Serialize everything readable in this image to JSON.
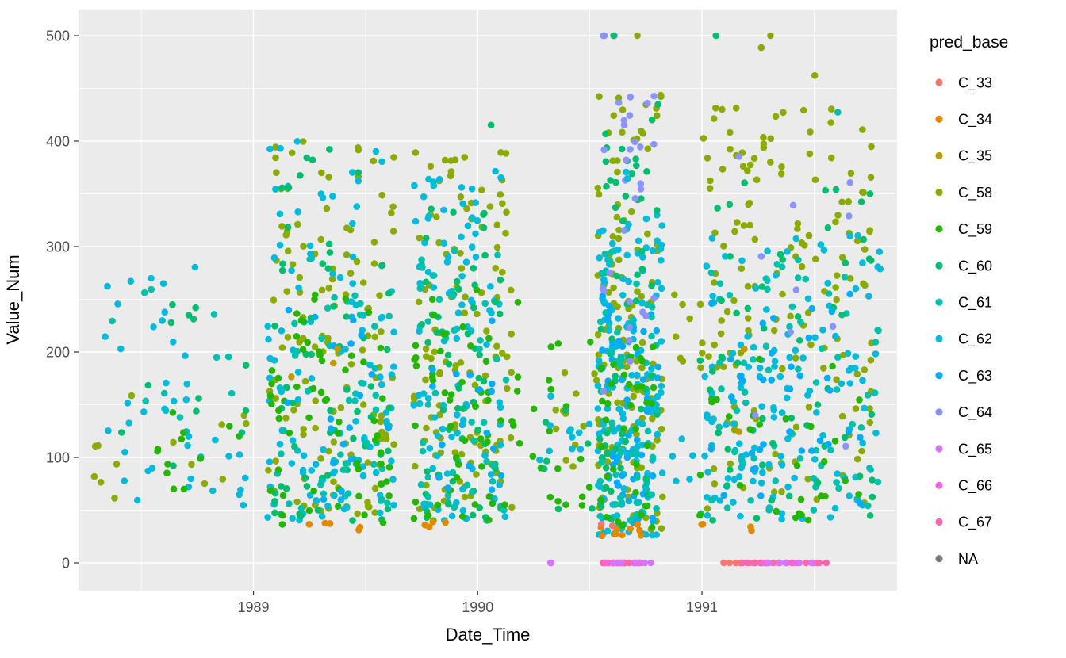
{
  "figure": {
    "background": "#FFFFFF"
  },
  "panel": {
    "background": "#EBEBEB",
    "grid_major": "#FFFFFF",
    "grid_minor": "#FFFFFF"
  },
  "axes": {
    "x": {
      "title": "Date_Time",
      "ticks": [
        {
          "value": 1989,
          "label": "1989"
        },
        {
          "value": 1990,
          "label": "1990"
        },
        {
          "value": 1991,
          "label": "1991"
        }
      ],
      "minor": [
        1988.5,
        1989.5,
        1990.5,
        1991.5
      ]
    },
    "y": {
      "title": "Value_Num",
      "ticks": [
        {
          "value": 0,
          "label": "0"
        },
        {
          "value": 100,
          "label": "100"
        },
        {
          "value": 200,
          "label": "200"
        },
        {
          "value": 300,
          "label": "300"
        },
        {
          "value": 400,
          "label": "400"
        },
        {
          "value": 500,
          "label": "500"
        }
      ],
      "minor": [
        50,
        150,
        250,
        350,
        450
      ]
    }
  },
  "legend": {
    "title": "pred_base",
    "position": "right",
    "items": [
      {
        "label": "C_33",
        "color": "#F8766D"
      },
      {
        "label": "C_34",
        "color": "#E18A00"
      },
      {
        "label": "C_35",
        "color": "#BE9C00"
      },
      {
        "label": "C_58",
        "color": "#8CAB00"
      },
      {
        "label": "C_59",
        "color": "#24B700"
      },
      {
        "label": "C_60",
        "color": "#00BE70"
      },
      {
        "label": "C_61",
        "color": "#00C1AB"
      },
      {
        "label": "C_62",
        "color": "#00BBDA"
      },
      {
        "label": "C_63",
        "color": "#00ACFC"
      },
      {
        "label": "C_64",
        "color": "#8B93FF"
      },
      {
        "label": "C_65",
        "color": "#D575FE"
      },
      {
        "label": "C_66",
        "color": "#F962DD"
      },
      {
        "label": "C_67",
        "color": "#FF65AC"
      },
      {
        "label": "NA",
        "color": "#7F7F7F"
      }
    ]
  },
  "chart_data": {
    "type": "scatter",
    "title": "",
    "xlabel": "Date_Time",
    "ylabel": "Value_Num",
    "x_unit": "decimal_year",
    "x_domain": [
      1988.22,
      1991.87
    ],
    "y_domain": [
      -26.3,
      524.8
    ],
    "ylim": [
      0,
      500
    ],
    "xticks": [
      1989,
      1990,
      1991
    ],
    "yticks": [
      0,
      100,
      200,
      300,
      400,
      500
    ],
    "legend_position": "right",
    "grid": true,
    "seed": 42,
    "point_radius": 4.3,
    "clusters": [
      {
        "s": "C_62",
        "x": [
          1988.35,
          1988.75
        ],
        "y": [
          120,
          290
        ],
        "n": 20,
        "c": 9,
        "b": 1
      },
      {
        "s": "C_62",
        "x": [
          1988.42,
          1988.95
        ],
        "y": [
          50,
          175
        ],
        "n": 22,
        "c": 10,
        "b": 1
      },
      {
        "s": "C_61",
        "x": [
          1988.38,
          1988.9
        ],
        "y": [
          120,
          260
        ],
        "n": 10,
        "c": 8,
        "b": 1
      },
      {
        "s": "C_59",
        "x": [
          1988.5,
          1988.95
        ],
        "y": [
          45,
          160
        ],
        "n": 12,
        "c": 8,
        "b": 1
      },
      {
        "s": "C_58",
        "x": [
          1988.3,
          1988.95
        ],
        "y": [
          60,
          165
        ],
        "n": 14,
        "c": 9,
        "b": 1
      },
      {
        "s": "C_60",
        "x": [
          1988.55,
          1988.82
        ],
        "y": [
          225,
          290
        ],
        "n": 5,
        "c": 4,
        "b": 1
      },
      {
        "s": "C_60",
        "x": [
          1988.4,
          1988.95
        ],
        "y": [
          90,
          200
        ],
        "n": 8,
        "c": 6,
        "b": 1
      },
      {
        "s": "C_58",
        "x": [
          1989.07,
          1989.62
        ],
        "y": [
          45,
          400
        ],
        "n": 120,
        "c": 22,
        "b": 1.2
      },
      {
        "s": "C_62",
        "x": [
          1989.07,
          1989.62
        ],
        "y": [
          40,
          400
        ],
        "n": 112,
        "c": 22,
        "b": 1.3
      },
      {
        "s": "C_60",
        "x": [
          1989.1,
          1989.6
        ],
        "y": [
          40,
          395
        ],
        "n": 62,
        "c": 20,
        "b": 1.4
      },
      {
        "s": "C_61",
        "x": [
          1989.1,
          1989.6
        ],
        "y": [
          50,
          300
        ],
        "n": 45,
        "c": 18,
        "b": 1.2
      },
      {
        "s": "C_59",
        "x": [
          1989.08,
          1989.6
        ],
        "y": [
          35,
          255
        ],
        "n": 58,
        "c": 20,
        "b": 1.2
      },
      {
        "s": "C_63",
        "x": [
          1989.15,
          1989.6
        ],
        "y": [
          60,
          250
        ],
        "n": 18,
        "c": 12,
        "b": 1.1
      },
      {
        "s": "C_34",
        "x": [
          1989.12,
          1989.45
        ],
        "y": [
          30,
          40
        ],
        "n": 5,
        "c": 4,
        "b": 1
      },
      {
        "s": "C_35",
        "x": [
          1989.2,
          1989.5
        ],
        "y": [
          150,
          250
        ],
        "n": 3,
        "c": 3,
        "b": 1
      },
      {
        "s": "C_58",
        "x": [
          1989.72,
          1990.15
        ],
        "y": [
          50,
          392
        ],
        "n": 115,
        "c": 20,
        "b": 1.2
      },
      {
        "s": "C_62",
        "x": [
          1989.72,
          1990.12
        ],
        "y": [
          40,
          372
        ],
        "n": 100,
        "c": 20,
        "b": 1.3
      },
      {
        "s": "C_60",
        "x": [
          1989.75,
          1990.1
        ],
        "y": [
          40,
          396
        ],
        "n": 55,
        "c": 16,
        "b": 1.35
      },
      {
        "s": "C_61",
        "x": [
          1989.75,
          1990.12
        ],
        "y": [
          50,
          300
        ],
        "n": 38,
        "c": 14,
        "b": 1.2
      },
      {
        "s": "C_59",
        "x": [
          1989.72,
          1990.18
        ],
        "y": [
          40,
          260
        ],
        "n": 55,
        "c": 18,
        "b": 1.2
      },
      {
        "s": "C_63",
        "x": [
          1989.8,
          1990.1
        ],
        "y": [
          60,
          230
        ],
        "n": 16,
        "c": 10,
        "b": 1.1
      },
      {
        "s": "C_34",
        "x": [
          1989.78,
          1989.95
        ],
        "y": [
          32,
          40
        ],
        "n": 4,
        "c": 3,
        "b": 1
      },
      {
        "s": "C_60",
        "x": [
          1990.05,
          1990.08
        ],
        "y": [
          410,
          418
        ],
        "n": 1,
        "c": 1,
        "b": 1
      },
      {
        "s": "C_59",
        "x": [
          1990.25,
          1990.5
        ],
        "y": [
          45,
          215
        ],
        "n": 18,
        "c": 8,
        "b": 1.1
      },
      {
        "s": "C_58",
        "x": [
          1990.3,
          1990.52
        ],
        "y": [
          90,
          195
        ],
        "n": 12,
        "c": 6,
        "b": 1
      },
      {
        "s": "C_62",
        "x": [
          1990.28,
          1990.5
        ],
        "y": [
          60,
          165
        ],
        "n": 12,
        "c": 6,
        "b": 1
      },
      {
        "s": "C_60",
        "x": [
          1990.3,
          1990.5
        ],
        "y": [
          50,
          150
        ],
        "n": 7,
        "c": 5,
        "b": 1
      },
      {
        "s": "C_65",
        "x": [
          1990.3,
          1990.33
        ],
        "y": [
          0,
          0
        ],
        "n": 2,
        "c": 2,
        "b": 1
      },
      {
        "s": "C_58",
        "x": [
          1990.54,
          1990.82
        ],
        "y": [
          30,
          445
        ],
        "n": 125,
        "c": 14,
        "b": 1.15
      },
      {
        "s": "C_62",
        "x": [
          1990.54,
          1990.82
        ],
        "y": [
          25,
          330
        ],
        "n": 150,
        "c": 14,
        "b": 1.25
      },
      {
        "s": "C_63",
        "x": [
          1990.56,
          1990.8
        ],
        "y": [
          30,
          260
        ],
        "n": 55,
        "c": 12,
        "b": 1.2
      },
      {
        "s": "C_60",
        "x": [
          1990.55,
          1990.8
        ],
        "y": [
          40,
          436
        ],
        "n": 55,
        "c": 12,
        "b": 1.35
      },
      {
        "s": "C_61",
        "x": [
          1990.55,
          1990.8
        ],
        "y": [
          40,
          300
        ],
        "n": 45,
        "c": 12,
        "b": 1.25
      },
      {
        "s": "C_59",
        "x": [
          1990.55,
          1990.78
        ],
        "y": [
          30,
          210
        ],
        "n": 35,
        "c": 10,
        "b": 1.2
      },
      {
        "s": "C_64",
        "x": [
          1990.56,
          1990.78
        ],
        "y": [
          150,
          445
        ],
        "n": 28,
        "c": 10,
        "b": 1
      },
      {
        "s": "C_64",
        "x": [
          1990.56,
          1990.64
        ],
        "y": [
          500,
          500
        ],
        "n": 3,
        "c": 3,
        "b": 1
      },
      {
        "s": "C_60",
        "x": [
          1990.6,
          1990.61
        ],
        "y": [
          500,
          500
        ],
        "n": 1,
        "c": 1,
        "b": 1
      },
      {
        "s": "C_58",
        "x": [
          1990.7,
          1990.72
        ],
        "y": [
          500,
          500
        ],
        "n": 1,
        "c": 1,
        "b": 1
      },
      {
        "s": "C_34",
        "x": [
          1990.55,
          1990.72
        ],
        "y": [
          20,
          40
        ],
        "n": 10,
        "c": 6,
        "b": 1
      },
      {
        "s": "C_33",
        "x": [
          1990.56,
          1990.6
        ],
        "y": [
          32,
          38
        ],
        "n": 2,
        "c": 2,
        "b": 1
      },
      {
        "s": "C_67",
        "x": [
          1990.55,
          1990.73
        ],
        "y": [
          0,
          0
        ],
        "n": 36,
        "c": 18,
        "b": 1
      },
      {
        "s": "C_66",
        "x": [
          1990.58,
          1990.7
        ],
        "y": [
          0,
          0
        ],
        "n": 6,
        "c": 5,
        "b": 1
      },
      {
        "s": "C_65",
        "x": [
          1990.6,
          1990.78
        ],
        "y": [
          0,
          0
        ],
        "n": 7,
        "c": 6,
        "b": 1
      },
      {
        "s": "C_64",
        "x": [
          1990.76,
          1990.8
        ],
        "y": [
          435,
          445
        ],
        "n": 1,
        "c": 1,
        "b": 1
      },
      {
        "s": "C_62",
        "x": [
          1990.66,
          1990.7
        ],
        "y": [
          358,
          375
        ],
        "n": 2,
        "c": 2,
        "b": 1
      },
      {
        "s": "C_58",
        "x": [
          1990.84,
          1990.95
        ],
        "y": [
          150,
          260
        ],
        "n": 6,
        "c": 4,
        "b": 1
      },
      {
        "s": "C_62",
        "x": [
          1990.84,
          1990.95
        ],
        "y": [
          60,
          160
        ],
        "n": 5,
        "c": 4,
        "b": 1
      },
      {
        "s": "C_58",
        "x": [
          1991.0,
          1991.75
        ],
        "y": [
          45,
          432
        ],
        "n": 150,
        "c": 26,
        "b": 0.85
      },
      {
        "s": "C_62",
        "x": [
          1991.02,
          1991.78
        ],
        "y": [
          40,
          312
        ],
        "n": 130,
        "c": 26,
        "b": 1.25
      },
      {
        "s": "C_61",
        "x": [
          1991.05,
          1991.78
        ],
        "y": [
          50,
          312
        ],
        "n": 62,
        "c": 22,
        "b": 1.2
      },
      {
        "s": "C_60",
        "x": [
          1991.0,
          1991.75
        ],
        "y": [
          40,
          365
        ],
        "n": 55,
        "c": 20,
        "b": 1.3
      },
      {
        "s": "C_63",
        "x": [
          1991.05,
          1991.7
        ],
        "y": [
          55,
          255
        ],
        "n": 35,
        "c": 16,
        "b": 1.2
      },
      {
        "s": "C_59",
        "x": [
          1991.0,
          1991.7
        ],
        "y": [
          40,
          205
        ],
        "n": 28,
        "c": 14,
        "b": 1.2
      },
      {
        "s": "C_64",
        "x": [
          1991.1,
          1991.65
        ],
        "y": [
          90,
          400
        ],
        "n": 10,
        "c": 8,
        "b": 1
      },
      {
        "s": "C_35",
        "x": [
          1991.2,
          1991.45
        ],
        "y": [
          120,
          220
        ],
        "n": 2,
        "c": 2,
        "b": 1
      },
      {
        "s": "C_58",
        "x": [
          1991.3,
          1991.32
        ],
        "y": [
          500,
          500
        ],
        "n": 1,
        "c": 1,
        "b": 1
      },
      {
        "s": "C_58",
        "x": [
          1991.25,
          1991.28
        ],
        "y": [
          484,
          492
        ],
        "n": 1,
        "c": 1,
        "b": 1
      },
      {
        "s": "C_58",
        "x": [
          1991.48,
          1991.52
        ],
        "y": [
          455,
          465
        ],
        "n": 1,
        "c": 1,
        "b": 1
      },
      {
        "s": "C_60",
        "x": [
          1991.05,
          1991.07
        ],
        "y": [
          500,
          500
        ],
        "n": 1,
        "c": 1,
        "b": 1
      },
      {
        "s": "C_61",
        "x": [
          1991.6,
          1991.62
        ],
        "y": [
          424,
          432
        ],
        "n": 1,
        "c": 1,
        "b": 1
      },
      {
        "s": "C_67",
        "x": [
          1991.12,
          1991.55
        ],
        "y": [
          0,
          0
        ],
        "n": 28,
        "c": 16,
        "b": 1
      },
      {
        "s": "C_66",
        "x": [
          1991.2,
          1991.5
        ],
        "y": [
          0,
          0
        ],
        "n": 5,
        "c": 4,
        "b": 1
      },
      {
        "s": "C_65",
        "x": [
          1991.3,
          1991.55
        ],
        "y": [
          0,
          0
        ],
        "n": 5,
        "c": 5,
        "b": 1
      },
      {
        "s": "C_33",
        "x": [
          1991.1,
          1991.15
        ],
        "y": [
          0,
          0
        ],
        "n": 3,
        "c": 3,
        "b": 1
      },
      {
        "s": "C_34",
        "x": [
          1991.0,
          1991.2
        ],
        "y": [
          25,
          40
        ],
        "n": 4,
        "c": 3,
        "b": 1
      },
      {
        "s": "C_62",
        "x": [
          1991.72,
          1991.78
        ],
        "y": [
          278,
          300
        ],
        "n": 2,
        "c": 2,
        "b": 1
      }
    ]
  }
}
